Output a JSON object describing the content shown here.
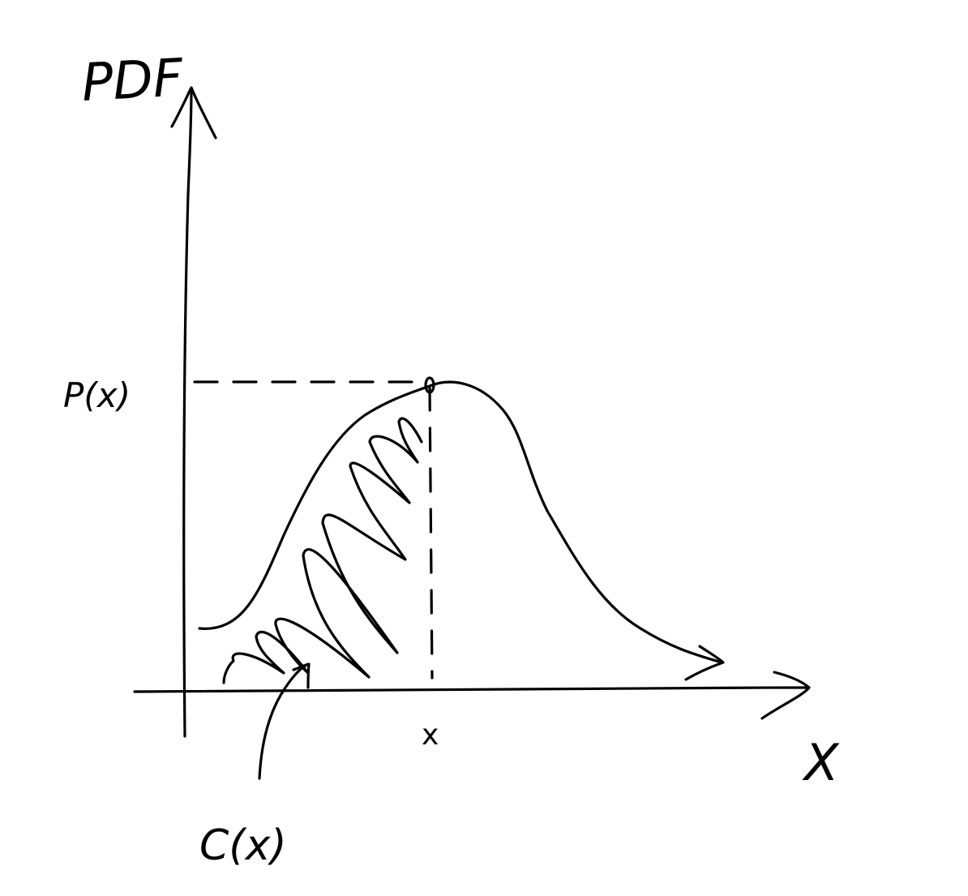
{
  "labels": {
    "y_axis": "PDF",
    "x_axis": "X",
    "peak_value": "P(x)",
    "x_mark": "x",
    "cdf": "C(x)"
  },
  "colors": {
    "ink": "#000000",
    "background": "#ffffff"
  }
}
